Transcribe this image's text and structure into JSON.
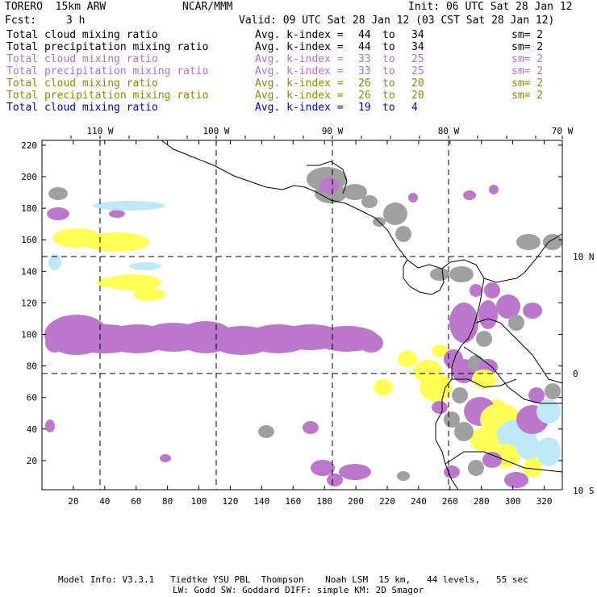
{
  "header": {
    "model": "TORERO  15km ARW",
    "org": "NCAR/MMM",
    "init": "Init: 06 UTC Sat 28 Jan 12",
    "fcst_label": "Fcst:",
    "fcst_value": "3 h",
    "valid": "Valid: 09 UTC Sat 28 Jan 12 (03 CST Sat 28 Jan 12)"
  },
  "legend_rows": [
    {
      "field": "Total cloud mixing ratio",
      "avg": "Avg. k-index =",
      "k1": "44",
      "to": "to",
      "k2": "34",
      "sm": "sm= 2",
      "color": "#000000"
    },
    {
      "field": "Total precipitation mixing ratio",
      "avg": "Avg. k-index =",
      "k1": "44",
      "to": "to",
      "k2": "34",
      "sm": "sm= 2",
      "color": "#000000"
    },
    {
      "field": "Total cloud mixing ratio",
      "avg": "Avg. k-index =",
      "k1": "33",
      "to": "to",
      "k2": "25",
      "sm": "sm= 2",
      "color": "#b070c8"
    },
    {
      "field": "Total precipitation mixing ratio",
      "avg": "Avg. k-index =",
      "k1": "33",
      "to": "to",
      "k2": "25",
      "sm": "sm= 2",
      "color": "#b070c8"
    },
    {
      "field": "Total cloud mixing ratio",
      "avg": "Avg. k-index =",
      "k1": "26",
      "to": "to",
      "k2": "20",
      "sm": "sm= 2",
      "color": "#8a8a00"
    },
    {
      "field": "Total precipitation mixing ratio",
      "avg": "Avg. k-index =",
      "k1": "26",
      "to": "to",
      "k2": "20",
      "sm": "sm= 2",
      "color": "#8a8a00"
    },
    {
      "field": "Total cloud mixing ratio",
      "avg": "Avg. k-index =",
      "k1": "19",
      "to": "to",
      "k2": "4",
      "sm": "",
      "color": "#0000cc"
    }
  ],
  "map": {
    "lon_labels": [
      "110 W",
      "100 W",
      "90 W",
      "80 W",
      "70 W"
    ],
    "lat_labels": [
      "10 N",
      "0",
      "10 S"
    ],
    "y_ticks": [
      "20",
      "40",
      "60",
      "80",
      "100",
      "120",
      "140",
      "160",
      "180",
      "200",
      "220"
    ],
    "x_ticks": [
      "20",
      "40",
      "60",
      "80",
      "100",
      "120",
      "140",
      "160",
      "180",
      "200",
      "220",
      "240",
      "260",
      "280",
      "300",
      "320"
    ],
    "colors": {
      "gray": "#a0a0a0",
      "purple": "#bb77cc",
      "yellow": "#ffff55",
      "lightblue": "#bfe8f8"
    }
  },
  "footer": {
    "line1": "Model Info: V3.3.1   Tiedtke YSU PBL  Thompson    Noah LSM  15 km,   44 levels,   55 sec",
    "line2": "LW: Godd SW: Goddard DIFF: simple KM: 2D Smagor"
  }
}
